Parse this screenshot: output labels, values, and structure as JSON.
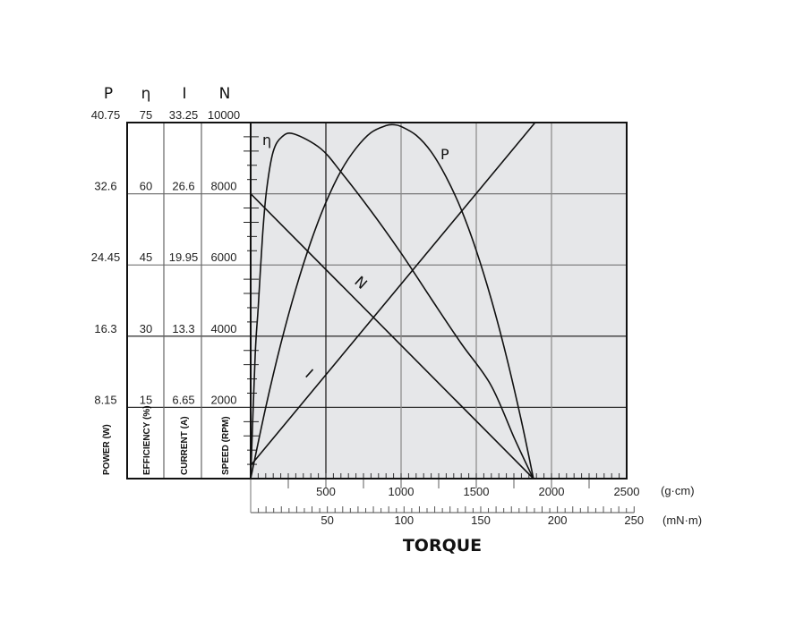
{
  "chart_data": {
    "type": "line",
    "title": "",
    "xlabel": "TORQUE",
    "x_units": [
      "(g·cm)",
      "(mN·m)"
    ],
    "x_ticks_gcm": [
      "500",
      "1000",
      "1500",
      "2000",
      "2500"
    ],
    "x_ticks_mnm": [
      "50",
      "100",
      "150",
      "200",
      "250"
    ],
    "xlim": [
      0,
      2500
    ],
    "grid": true,
    "background": "#e6e7e9",
    "y_axes": [
      {
        "symbol": "P",
        "label": "POWER (W)",
        "ticks": [
          "40.75",
          "32.6",
          "24.45",
          "16.3",
          "8.15"
        ],
        "ylim": [
          0,
          40.75
        ]
      },
      {
        "symbol": "η",
        "label": "EFFICIENCY (%)",
        "ticks": [
          "75",
          "60",
          "45",
          "30",
          "15"
        ],
        "ylim": [
          0,
          75
        ]
      },
      {
        "symbol": "I",
        "label": "CURRENT (A)",
        "ticks": [
          "33.25",
          "26.6",
          "19.95",
          "13.3",
          "6.65"
        ],
        "ylim": [
          0,
          33.25
        ]
      },
      {
        "symbol": "N",
        "label": "SPEED (RPM)",
        "ticks": [
          "10000",
          "8000",
          "6000",
          "4000",
          "2000"
        ],
        "ylim": [
          0,
          10000
        ]
      }
    ],
    "series": [
      {
        "name": "η",
        "axis": 1,
        "points": [
          [
            0,
            0
          ],
          [
            30,
            26
          ],
          [
            50,
            36
          ],
          [
            79,
            51.2
          ],
          [
            105,
            60.6
          ],
          [
            149,
            68.8
          ],
          [
            208,
            72
          ],
          [
            288,
            72.6
          ],
          [
            466,
            69.5
          ],
          [
            605,
            64.4
          ],
          [
            804,
            56.2
          ],
          [
            1002,
            47.4
          ],
          [
            1200,
            37.9
          ],
          [
            1399,
            28.5
          ],
          [
            1597,
            19.7
          ],
          [
            1756,
            8.3
          ],
          [
            1879,
            0
          ]
        ]
      },
      {
        "name": "P",
        "axis": 0,
        "points": [
          [
            0,
            0
          ],
          [
            100,
            8.15
          ],
          [
            200,
            15.4
          ],
          [
            300,
            21.7
          ],
          [
            400,
            27.1
          ],
          [
            500,
            31.6
          ],
          [
            600,
            35.2
          ],
          [
            700,
            37.8
          ],
          [
            800,
            39.6
          ],
          [
            900,
            40.4
          ],
          [
            952,
            40.5
          ],
          [
            1000,
            40.3
          ],
          [
            1100,
            39.3
          ],
          [
            1200,
            37.4
          ],
          [
            1300,
            34.5
          ],
          [
            1400,
            30.8
          ],
          [
            1500,
            26.1
          ],
          [
            1600,
            20.5
          ],
          [
            1700,
            14.0
          ],
          [
            1800,
            6.6
          ],
          [
            1880,
            0
          ]
        ]
      },
      {
        "name": "N",
        "axis": 3,
        "points": [
          [
            0,
            8000
          ],
          [
            1880,
            0
          ]
        ]
      },
      {
        "name": "I",
        "axis": 2,
        "points": [
          [
            0,
            1.23
          ],
          [
            1891,
            33.25
          ]
        ]
      }
    ]
  }
}
